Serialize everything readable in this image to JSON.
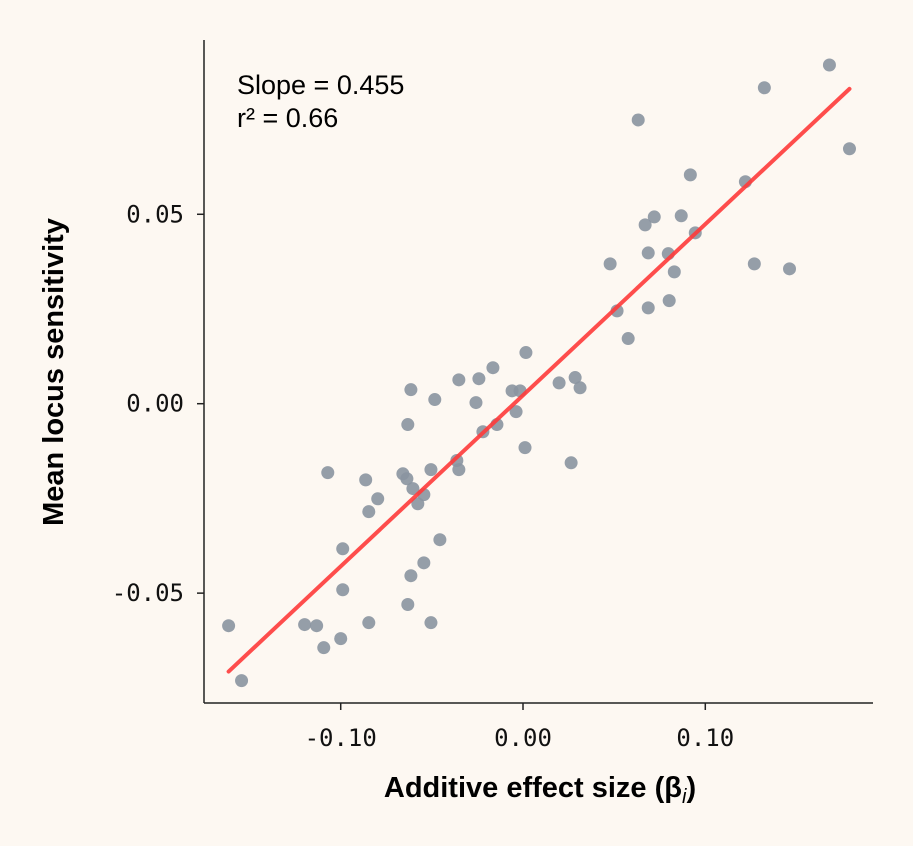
{
  "chart_data": {
    "type": "scatter",
    "title": "",
    "xlabel": "Additive effect size (β",
    "xlabel_sub": "i",
    "xlabel_close": ")",
    "ylabel": "Mean locus sensitivity",
    "xlim": [
      -0.175,
      0.192
    ],
    "ylim": [
      -0.079,
      0.096
    ],
    "xticks": [
      -0.1,
      0.0,
      0.1
    ],
    "xtick_labels": [
      "-0.10",
      "0.00",
      "0.10"
    ],
    "yticks": [
      -0.05,
      0.0,
      0.05
    ],
    "ytick_labels": [
      "-0.05",
      "0.00",
      "0.05"
    ],
    "grid": false,
    "annotations": [
      "Slope = 0.455",
      "r² = 0.66"
    ],
    "point_color": "#8a93a0",
    "line_color": "#ff3b3b",
    "background": "#fdf8f2",
    "fit_line": {
      "x": [
        -0.1615,
        0.1791
      ],
      "y": [
        -0.0707,
        0.0831
      ]
    },
    "points": [
      [
        -0.1615,
        -0.0586
      ],
      [
        -0.1544,
        -0.0731
      ],
      [
        -0.1198,
        -0.0583
      ],
      [
        -0.1132,
        -0.0586
      ],
      [
        -0.1093,
        -0.0644
      ],
      [
        -0.1071,
        -0.0182
      ],
      [
        -0.1,
        -0.062
      ],
      [
        -0.0989,
        -0.0383
      ],
      [
        -0.0989,
        -0.0491
      ],
      [
        -0.0863,
        -0.0201
      ],
      [
        -0.0846,
        -0.0285
      ],
      [
        -0.0846,
        -0.0578
      ],
      [
        -0.0797,
        -0.0251
      ],
      [
        -0.0659,
        -0.0185
      ],
      [
        -0.0637,
        -0.0198
      ],
      [
        -0.0632,
        -0.0055
      ],
      [
        -0.0632,
        -0.053
      ],
      [
        -0.0615,
        0.0037
      ],
      [
        -0.0615,
        -0.0454
      ],
      [
        -0.0604,
        -0.0224
      ],
      [
        -0.0577,
        -0.0264
      ],
      [
        -0.0544,
        -0.042
      ],
      [
        -0.0544,
        -0.024
      ],
      [
        -0.0505,
        -0.0578
      ],
      [
        -0.0505,
        -0.0174
      ],
      [
        -0.0484,
        0.0011
      ],
      [
        -0.0456,
        -0.0359
      ],
      [
        -0.0363,
        -0.015
      ],
      [
        -0.0352,
        -0.0174
      ],
      [
        -0.0352,
        0.0063
      ],
      [
        -0.0258,
        0.0003
      ],
      [
        -0.0242,
        0.0066
      ],
      [
        -0.022,
        -0.0074
      ],
      [
        -0.0165,
        0.0095
      ],
      [
        -0.0143,
        -0.0055
      ],
      [
        -0.006,
        0.0034
      ],
      [
        -0.0038,
        -0.0021
      ],
      [
        -0.0016,
        0.0034
      ],
      [
        0.0011,
        -0.0116
      ],
      [
        0.0016,
        0.0135
      ],
      [
        0.0198,
        0.0055
      ],
      [
        0.0264,
        -0.0156
      ],
      [
        0.0286,
        0.0069
      ],
      [
        0.0313,
        0.0042
      ],
      [
        0.0478,
        0.0369
      ],
      [
        0.0516,
        0.0245
      ],
      [
        0.0577,
        0.0172
      ],
      [
        0.0632,
        0.0749
      ],
      [
        0.067,
        0.0472
      ],
      [
        0.0687,
        0.0398
      ],
      [
        0.0687,
        0.0253
      ],
      [
        0.072,
        0.0493
      ],
      [
        0.0797,
        0.0396
      ],
      [
        0.0802,
        0.0272
      ],
      [
        0.083,
        0.0348
      ],
      [
        0.0868,
        0.0496
      ],
      [
        0.0918,
        0.0604
      ],
      [
        0.0945,
        0.0451
      ],
      [
        0.122,
        0.0586
      ],
      [
        0.1269,
        0.0369
      ],
      [
        0.1324,
        0.0834
      ],
      [
        0.1462,
        0.0356
      ],
      [
        0.1681,
        0.0894
      ],
      [
        0.1791,
        0.0673
      ]
    ]
  }
}
